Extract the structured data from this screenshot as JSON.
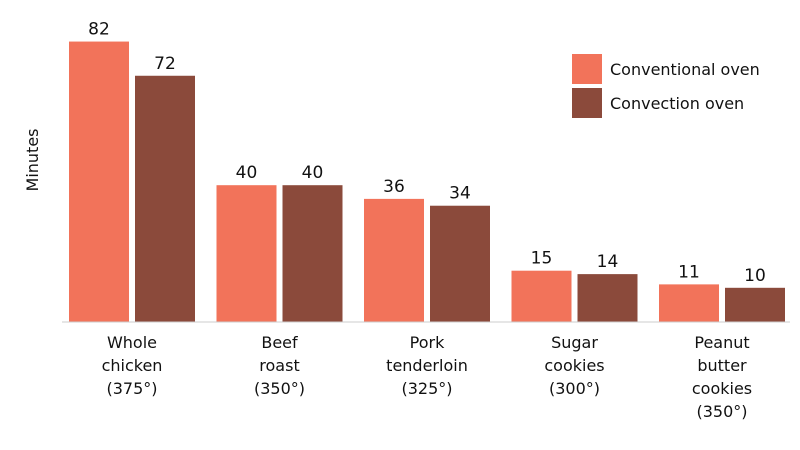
{
  "chart_data": {
    "type": "bar",
    "title": "",
    "xlabel": "",
    "ylabel": "Minutes",
    "ylim": [
      0,
      85
    ],
    "grid": false,
    "legend_position": "top-right",
    "categories": [
      [
        "Whole",
        "chicken",
        "(375°)"
      ],
      [
        "Beef",
        "roast",
        "(350°)"
      ],
      [
        "Pork",
        "tenderloin",
        "(325°)"
      ],
      [
        "Sugar",
        "cookies",
        "(300°)"
      ],
      [
        "Peanut",
        "butter",
        "cookies",
        "(350°)"
      ]
    ],
    "series": [
      {
        "name": "Conventional oven",
        "color": "#f2735a",
        "values": [
          82,
          40,
          36,
          15,
          11
        ]
      },
      {
        "name": "Convection oven",
        "color": "#8b4a3b",
        "values": [
          72,
          40,
          34,
          14,
          10
        ]
      }
    ]
  }
}
